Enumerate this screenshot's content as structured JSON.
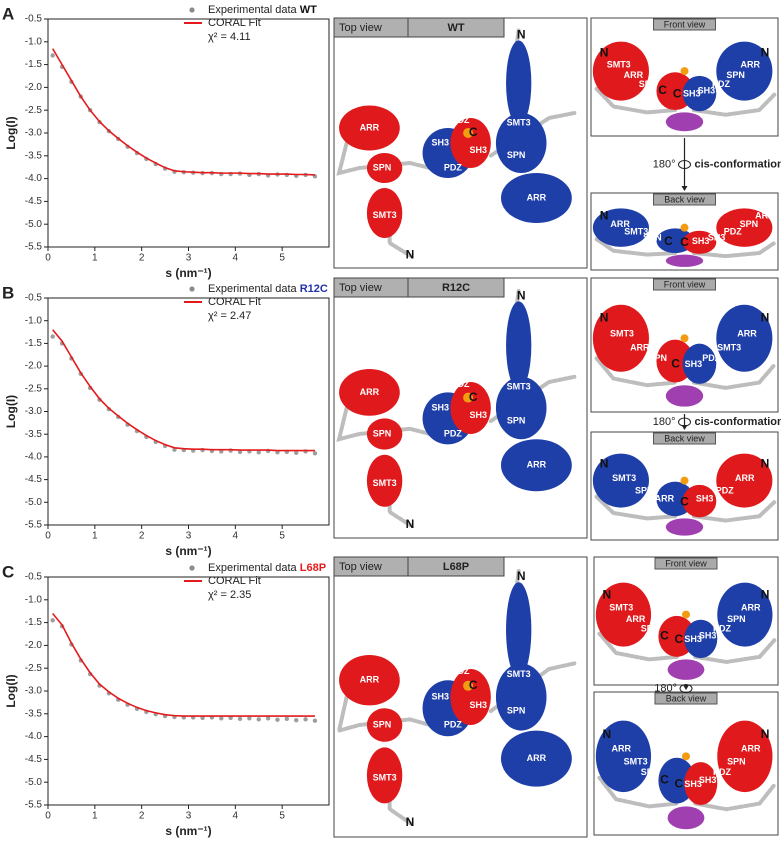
{
  "chart_data": [
    {
      "type": "line",
      "panel": "A",
      "sample": "WT",
      "sample_color": "#111111",
      "annotation": "χ² = 4.11",
      "x_label": "s (nm⁻¹)",
      "y_label": "Log(I)",
      "x": [
        0.1,
        0.3,
        0.5,
        0.7,
        0.9,
        1.1,
        1.3,
        1.5,
        1.7,
        1.9,
        2.1,
        2.3,
        2.5,
        2.7,
        2.9,
        3.1,
        3.3,
        3.5,
        3.7,
        3.9,
        4.1,
        4.3,
        4.5,
        4.7,
        4.9,
        5.1,
        5.3,
        5.5,
        5.7
      ],
      "series": [
        {
          "name": "Experimental data",
          "color": "#8c8c8c",
          "marker": "point",
          "values": [
            -1.3,
            -1.55,
            -1.88,
            -2.2,
            -2.5,
            -2.76,
            -2.96,
            -3.13,
            -3.3,
            -3.44,
            -3.57,
            -3.68,
            -3.78,
            -3.85,
            -3.86,
            -3.87,
            -3.88,
            -3.88,
            -3.9,
            -3.9,
            -3.89,
            -3.92,
            -3.9,
            -3.93,
            -3.91,
            -3.92,
            -3.94,
            -3.92,
            -3.95
          ]
        },
        {
          "name": "CORAL Fit",
          "color": "#e41a1c",
          "marker": "line",
          "values": [
            -1.15,
            -1.5,
            -1.85,
            -2.2,
            -2.5,
            -2.75,
            -2.95,
            -3.12,
            -3.28,
            -3.42,
            -3.55,
            -3.66,
            -3.76,
            -3.83,
            -3.85,
            -3.86,
            -3.87,
            -3.87,
            -3.88,
            -3.88,
            -3.88,
            -3.89,
            -3.89,
            -3.9,
            -3.9,
            -3.9,
            -3.91,
            -3.91,
            -3.92
          ]
        }
      ],
      "xlim": [
        0,
        6
      ],
      "xticks": [
        0,
        1,
        2,
        3,
        4,
        5
      ],
      "ylim": [
        -5.5,
        -0.5
      ],
      "yticks": [
        -0.5,
        {
          "value": -1,
          "label": "-1.0"
        },
        -1.5,
        {
          "value": -2,
          "label": "-2.0"
        },
        -2.5,
        {
          "value": -3,
          "label": "-3.0"
        },
        -3.5,
        {
          "value": -4,
          "label": "-4.0"
        },
        -4.5,
        {
          "value": -5,
          "label": "-5.0"
        },
        -5.5
      ]
    },
    {
      "type": "line",
      "panel": "B",
      "sample": "R12C",
      "sample_color": "#2233aa",
      "annotation": "χ² = 2.47",
      "x_label": "s (nm⁻¹)",
      "y_label": "Log(I)",
      "x": [
        0.1,
        0.3,
        0.5,
        0.7,
        0.9,
        1.1,
        1.3,
        1.5,
        1.7,
        1.9,
        2.1,
        2.3,
        2.5,
        2.7,
        2.9,
        3.1,
        3.3,
        3.5,
        3.7,
        3.9,
        4.1,
        4.3,
        4.5,
        4.7,
        4.9,
        5.1,
        5.3,
        5.5,
        5.7
      ],
      "series": [
        {
          "name": "Experimental data",
          "color": "#8c8c8c",
          "marker": "point",
          "values": [
            -1.35,
            -1.5,
            -1.83,
            -2.17,
            -2.48,
            -2.74,
            -2.95,
            -3.12,
            -3.29,
            -3.43,
            -3.56,
            -3.67,
            -3.76,
            -3.84,
            -3.85,
            -3.86,
            -3.85,
            -3.87,
            -3.88,
            -3.86,
            -3.89,
            -3.88,
            -3.9,
            -3.87,
            -3.9,
            -3.89,
            -3.91,
            -3.88,
            -3.92
          ]
        },
        {
          "name": "CORAL Fit",
          "color": "#e41a1c",
          "marker": "line",
          "values": [
            -1.2,
            -1.45,
            -1.8,
            -2.15,
            -2.45,
            -2.72,
            -2.93,
            -3.1,
            -3.26,
            -3.4,
            -3.53,
            -3.64,
            -3.73,
            -3.8,
            -3.82,
            -3.83,
            -3.83,
            -3.84,
            -3.84,
            -3.84,
            -3.85,
            -3.85,
            -3.85,
            -3.85,
            -3.86,
            -3.86,
            -3.86,
            -3.86,
            -3.86
          ]
        }
      ],
      "xlim": [
        0,
        6
      ],
      "xticks": [
        0,
        1,
        2,
        3,
        4,
        5
      ],
      "ylim": [
        -5.5,
        -0.5
      ],
      "yticks": [
        -0.5,
        {
          "value": -1,
          "label": "-1.0"
        },
        -1.5,
        {
          "value": -2,
          "label": "-2.0"
        },
        -2.5,
        {
          "value": -3,
          "label": "-3.0"
        },
        -3.5,
        {
          "value": -4,
          "label": "-4.0"
        },
        -4.5,
        {
          "value": -5,
          "label": "-5.0"
        },
        -5.5
      ]
    },
    {
      "type": "line",
      "panel": "C",
      "sample": "L68P",
      "sample_color": "#e41a1c",
      "annotation": "χ² = 2.35",
      "x_label": "s (nm⁻¹)",
      "y_label": "Log(I)",
      "x": [
        0.1,
        0.3,
        0.5,
        0.7,
        0.9,
        1.1,
        1.3,
        1.5,
        1.7,
        1.9,
        2.1,
        2.3,
        2.5,
        2.7,
        2.9,
        3.1,
        3.3,
        3.5,
        3.7,
        3.9,
        4.1,
        4.3,
        4.5,
        4.7,
        4.9,
        5.1,
        5.3,
        5.5,
        5.7
      ],
      "series": [
        {
          "name": "Experimental data",
          "color": "#8c8c8c",
          "marker": "point",
          "values": [
            -1.45,
            -1.58,
            -1.98,
            -2.33,
            -2.63,
            -2.88,
            -3.05,
            -3.19,
            -3.3,
            -3.39,
            -3.46,
            -3.51,
            -3.55,
            -3.57,
            -3.58,
            -3.58,
            -3.59,
            -3.58,
            -3.6,
            -3.59,
            -3.61,
            -3.6,
            -3.62,
            -3.6,
            -3.63,
            -3.61,
            -3.64,
            -3.62,
            -3.65
          ]
        },
        {
          "name": "CORAL Fit",
          "color": "#e41a1c",
          "marker": "line",
          "values": [
            -1.3,
            -1.55,
            -1.95,
            -2.3,
            -2.6,
            -2.85,
            -3.02,
            -3.16,
            -3.27,
            -3.36,
            -3.43,
            -3.48,
            -3.52,
            -3.54,
            -3.55,
            -3.55,
            -3.55,
            -3.55,
            -3.55,
            -3.55,
            -3.55,
            -3.55,
            -3.55,
            -3.55,
            -3.55,
            -3.55,
            -3.55,
            -3.55,
            -3.55
          ]
        }
      ],
      "xlim": [
        0,
        6
      ],
      "xticks": [
        0,
        1,
        2,
        3,
        4,
        5
      ],
      "ylim": [
        -5.5,
        -0.5
      ],
      "yticks": [
        -0.5,
        {
          "value": -1,
          "label": "-1.0"
        },
        -1.5,
        {
          "value": -2,
          "label": "-2.0"
        },
        -2.5,
        {
          "value": -3,
          "label": "-3.0"
        },
        -3.5,
        {
          "value": -4,
          "label": "-4.0"
        },
        -4.5,
        {
          "value": -5,
          "label": "-5.0"
        },
        -5.5
      ]
    }
  ],
  "structures": [
    {
      "top_view": {
        "title": "Top view",
        "labels": [
          "N",
          "ARR",
          "SPN",
          "SMT3",
          "N",
          "SH3",
          "PDZ",
          "SH3",
          "PDZ",
          "SMT3",
          "SPN",
          "ARR",
          "C"
        ]
      },
      "front_view": {
        "title": "Front view",
        "labels": [
          "N",
          "SMT3",
          "ARR",
          "SPN",
          "C",
          "C",
          "SH3",
          "SH3",
          "PDZ",
          "SPN",
          "ARR",
          "N"
        ]
      },
      "back_view": {
        "title": "Back view",
        "labels": [
          "N",
          "ARR",
          "SMT3",
          "SPN",
          "C",
          "C",
          "SH3",
          "SH3",
          "PDZ",
          "SPN",
          "ARR"
        ]
      },
      "rotation": {
        "angle": "180°",
        "note": "cis-conformation"
      }
    },
    {
      "top_view": {
        "title": "Top view",
        "labels": [
          "N",
          "ARR",
          "SPN",
          "SMT3",
          "N",
          "SH3",
          "PDZ",
          "SH3",
          "PDZ",
          "SMT3",
          "SPN",
          "ARR",
          "C"
        ]
      },
      "front_view": {
        "title": "Front view",
        "labels": [
          "N",
          "SMT3",
          "ARR",
          "SPN",
          "C",
          "SH3",
          "PDZ",
          "SMT3",
          "ARR",
          "N"
        ]
      },
      "back_view": {
        "title": "Back view",
        "labels": [
          "N",
          "SMT3",
          "SPN",
          "ARR",
          "C",
          "SH3",
          "PDZ",
          "ARR",
          "N"
        ]
      },
      "rotation": {
        "angle": "180°",
        "note": "cis-conformation"
      }
    },
    {
      "top_view": {
        "title": "Top view",
        "labels": [
          "N",
          "ARR",
          "SPN",
          "SMT3",
          "N",
          "SH3",
          "PDZ",
          "SH3",
          "PDZ",
          "SMT3",
          "SPN",
          "ARR",
          "C"
        ]
      },
      "front_view": {
        "title": "Front view",
        "labels": [
          "N",
          "SMT3",
          "ARR",
          "SPN",
          "C",
          "C",
          "SH3",
          "SH3",
          "PDZ",
          "SPN",
          "ARR",
          "N"
        ]
      },
      "back_view": {
        "title": "Back view",
        "labels": [
          "N",
          "ARR",
          "SMT3",
          "SPN",
          "C",
          "C",
          "SH3",
          "SH3",
          "PDZ",
          "SPN",
          "ARR",
          "N"
        ]
      },
      "rotation": {
        "angle": "180°"
      }
    }
  ]
}
